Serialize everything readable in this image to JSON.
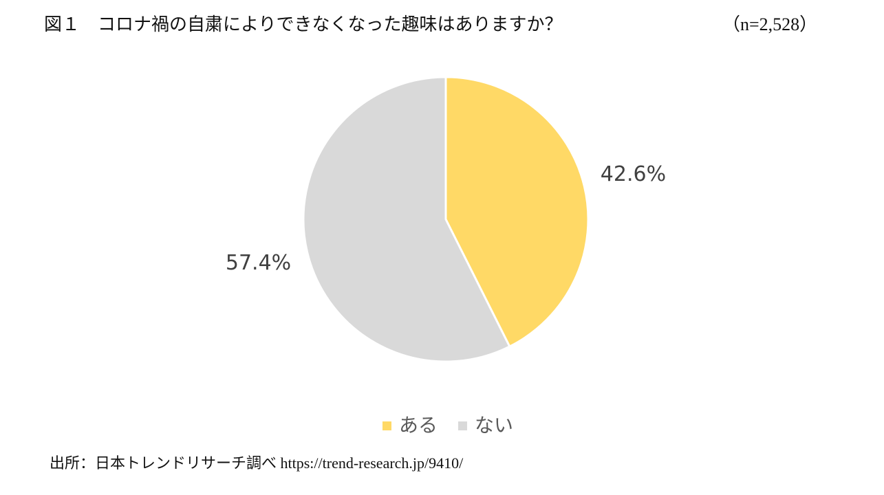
{
  "chart_data": {
    "type": "pie",
    "title": "図１　コロナ禍の自粛によりできなくなった趣味はありますか？",
    "subtitle": "（n=2,528）",
    "categories": [
      "ある",
      "ない"
    ],
    "values": [
      42.6,
      57.4
    ],
    "value_labels": [
      "42.6%",
      "57.4%"
    ],
    "colors": [
      "#ffd966",
      "#d9d9d9"
    ],
    "legend": "bottom",
    "source": "出所：日本トレンドリサーチ調べ https://trend-research.jp/9410/"
  }
}
